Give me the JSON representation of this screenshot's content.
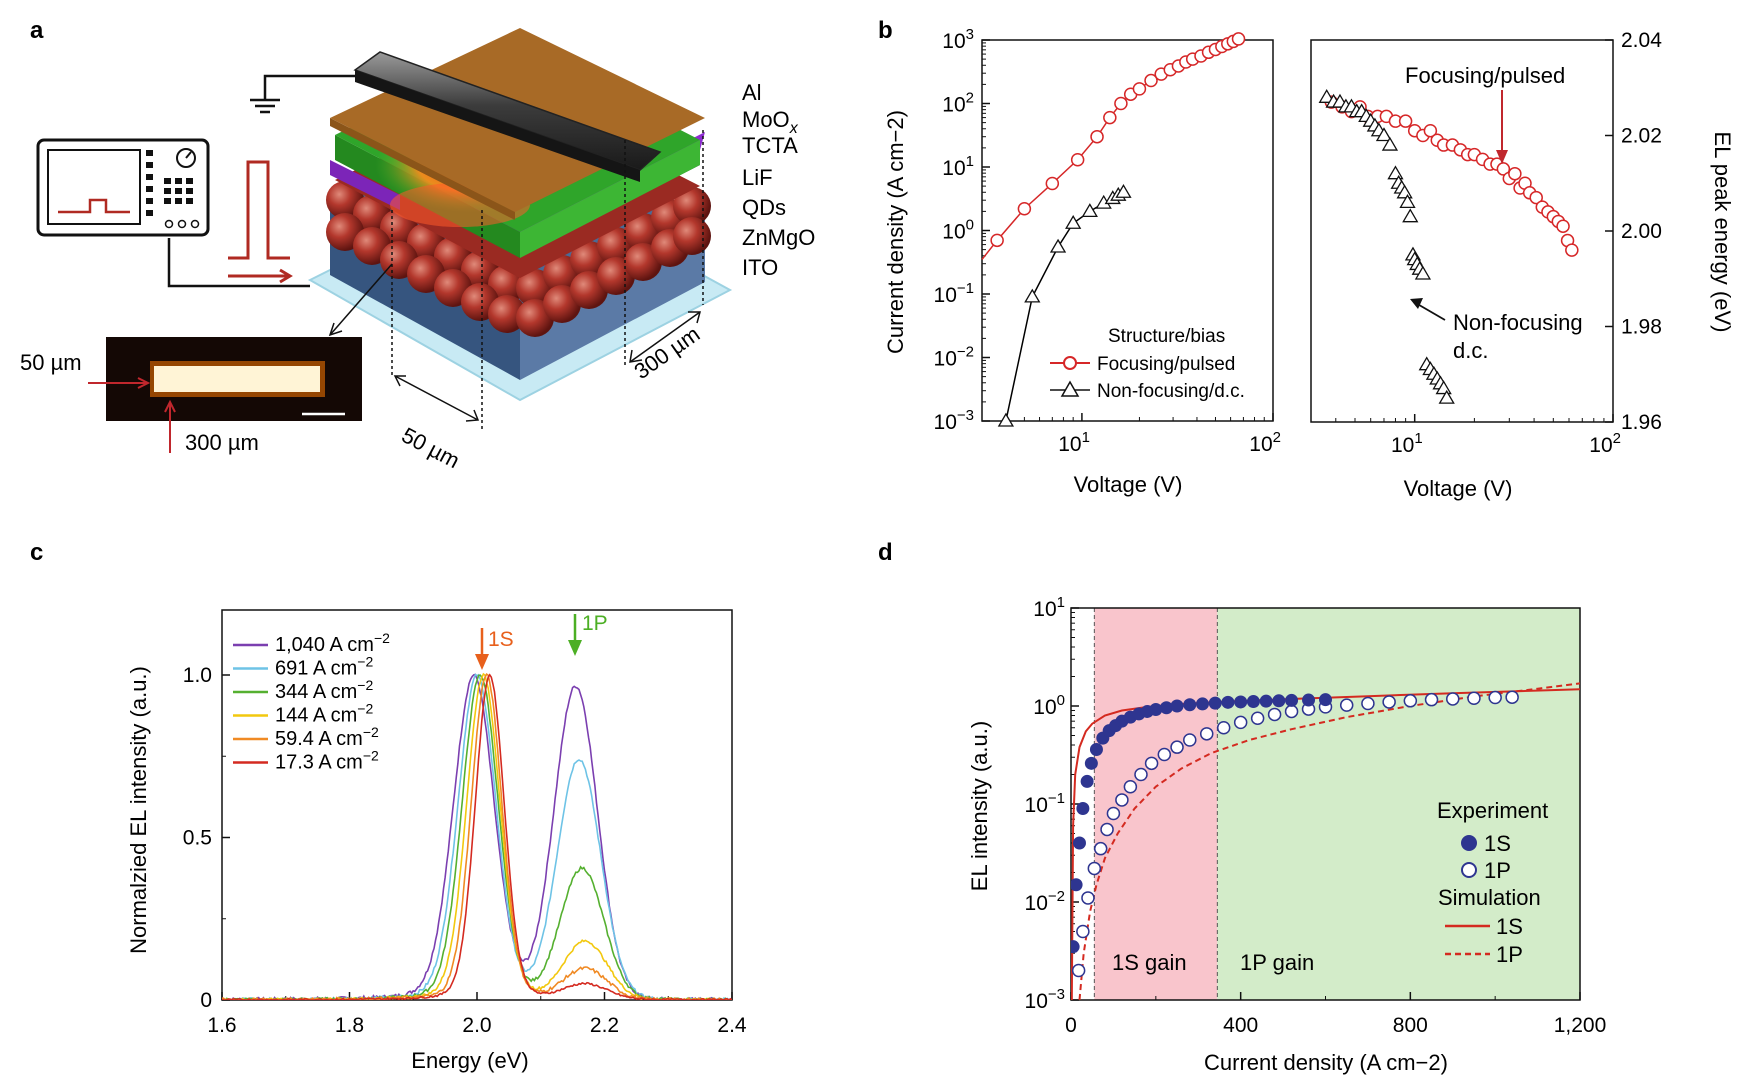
{
  "panels": {
    "a": {
      "label": "a",
      "layers": [
        "Al",
        "MoO",
        "TCTA",
        "LiF",
        "QDs",
        "ZnMgO",
        "ITO"
      ],
      "moo_subscript": "x",
      "dim_top": "50 µm",
      "dim_bottom": "300 µm",
      "dim_width": "50 µm",
      "dim_length": "300 µm"
    },
    "b": {
      "label": "b"
    },
    "c": {
      "label": "c"
    },
    "d": {
      "label": "d"
    }
  },
  "chart_data": [
    {
      "panel": "b-left",
      "type": "line",
      "xlabel": "Voltage (V)",
      "ylabel": "Current density (A cm−2)",
      "xscale": "log",
      "yscale": "log",
      "xlim": [
        3,
        100
      ],
      "ylim": [
        0.001,
        1000
      ],
      "legend_title": "Structure/bias",
      "legend_position": "bottom-right",
      "series": [
        {
          "name": "Focusing/pulsed",
          "color": "#d62728",
          "marker": "circle",
          "x": [
            3.6,
            5.0,
            7.0,
            9.5,
            12,
            14,
            16,
            18,
            20,
            23,
            26,
            29,
            32,
            35,
            38,
            42,
            46,
            50,
            54,
            58,
            62,
            66
          ],
          "y": [
            0.7,
            2.2,
            5.5,
            13,
            30,
            60,
            100,
            140,
            170,
            230,
            290,
            340,
            390,
            450,
            500,
            560,
            640,
            710,
            790,
            870,
            950,
            1040
          ]
        },
        {
          "name": "Non-focusing/d.c.",
          "color": "#000000",
          "marker": "triangle",
          "x": [
            4.0,
            5.5,
            7.5,
            9,
            11,
            13,
            14.5,
            15.5,
            16.5
          ],
          "y": [
            0.001,
            0.09,
            0.55,
            1.3,
            2.0,
            2.7,
            3.2,
            3.6,
            4.0
          ]
        }
      ]
    },
    {
      "panel": "b-right",
      "type": "scatter",
      "xlabel": "Voltage (V)",
      "ylabel": "EL peak energy (eV)",
      "xscale": "log",
      "xlim": [
        3,
        100
      ],
      "ylim": [
        1.96,
        2.04
      ],
      "yticks": [
        1.96,
        1.98,
        2.0,
        2.02,
        2.04
      ],
      "annotations": [
        "Focusing/pulsed",
        "Non-focusing",
        "d.c."
      ],
      "series": [
        {
          "name": "Focusing/pulsed",
          "color": "#d62728",
          "marker": "circle",
          "x": [
            3.8,
            4.3,
            4.8,
            5.3,
            5.8,
            6.5,
            7.2,
            8,
            9,
            10,
            11,
            12,
            13,
            14,
            15.5,
            17,
            18.5,
            20,
            22,
            24,
            26,
            28,
            30,
            32,
            34,
            36,
            38,
            41,
            44,
            47,
            50,
            53,
            56,
            59,
            62
          ],
          "y": [
            2.027,
            2.026,
            2.025,
            2.026,
            2.024,
            2.024,
            2.024,
            2.023,
            2.023,
            2.021,
            2.02,
            2.021,
            2.019,
            2.018,
            2.018,
            2.017,
            2.016,
            2.016,
            2.015,
            2.014,
            2.014,
            2.013,
            2.011,
            2.012,
            2.009,
            2.01,
            2.008,
            2.007,
            2.005,
            2.004,
            2.003,
            2.002,
            2.001,
            1.998,
            1.996
          ]
        },
        {
          "name": "Non-focusing/d.c.",
          "color": "#000000",
          "marker": "triangle",
          "x": [
            3.6,
            3.9,
            4.2,
            4.5,
            4.8,
            5.1,
            5.4,
            5.7,
            6.0,
            6.3,
            6.6,
            7.0,
            7.5,
            8.0,
            8.3,
            8.6,
            8.9,
            9.2,
            9.5,
            9.8,
            10.0,
            10.3,
            10.6,
            11.0,
            11.5,
            12.0,
            12.5,
            13.0,
            13.5,
            14.0,
            14.5
          ],
          "y": [
            2.028,
            2.027,
            2.027,
            2.026,
            2.026,
            2.025,
            2.025,
            2.024,
            2.023,
            2.022,
            2.021,
            2.02,
            2.018,
            2.012,
            2.01,
            2.009,
            2.008,
            2.006,
            2.003,
            1.995,
            1.994,
            1.993,
            1.992,
            1.991,
            1.972,
            1.971,
            1.97,
            1.969,
            1.968,
            1.967,
            1.965
          ]
        }
      ]
    },
    {
      "panel": "c",
      "type": "line",
      "xlabel": "Energy (eV)",
      "ylabel": "Normalzied EL intensity (a.u.)",
      "xlim": [
        1.6,
        2.4
      ],
      "ylim": [
        0,
        1.2
      ],
      "xticks": [
        "1.6",
        "1.8",
        "2.0",
        "2.2",
        "2.4"
      ],
      "yticks": [
        "0",
        "0.5",
        "1.0"
      ],
      "legend_position": "top-left",
      "annotations": [
        {
          "text": "1S",
          "x": 2.01,
          "color": "#e8601c"
        },
        {
          "text": "1P",
          "x": 2.16,
          "color": "#4caf24"
        }
      ],
      "series": [
        {
          "name": "1,040 A cm−2",
          "color": "#7b3fb0",
          "peak1": 1.995,
          "peak2": 2.155,
          "p2_amp": 1.03,
          "width1": 0.045
        },
        {
          "name": "691 A cm−2",
          "color": "#6ec3e6",
          "peak1": 2.0,
          "peak2": 2.16,
          "p2_amp": 0.79,
          "width1": 0.042
        },
        {
          "name": "344 A cm−2",
          "color": "#55b030",
          "peak1": 2.005,
          "peak2": 2.165,
          "p2_amp": 0.43,
          "width1": 0.04
        },
        {
          "name": "144 A cm−2",
          "color": "#f2c80f",
          "peak1": 2.01,
          "peak2": 2.17,
          "p2_amp": 0.19,
          "width1": 0.037
        },
        {
          "name": "59.4 A cm−2",
          "color": "#f08a24",
          "peak1": 2.015,
          "peak2": 2.17,
          "p2_amp": 0.1,
          "width1": 0.034
        },
        {
          "name": "17.3 A cm−2",
          "color": "#d42a20",
          "peak1": 2.02,
          "peak2": 2.17,
          "p2_amp": 0.05,
          "width1": 0.032
        }
      ]
    },
    {
      "panel": "d",
      "type": "scatter",
      "xlabel": "Current density (A cm−2)",
      "ylabel": "EL intensity (a.u.)",
      "yscale": "log",
      "xlim": [
        0,
        1200
      ],
      "ylim": [
        0.001,
        10
      ],
      "xticks": [
        "0",
        "400",
        "800",
        "1,200"
      ],
      "regions": [
        {
          "label": "1S gain",
          "from": 55,
          "to": 345,
          "color": "#f9c5cc"
        },
        {
          "label": "1P gain",
          "from": 345,
          "to": 1200,
          "color": "#d3ecc9"
        }
      ],
      "legend_title_experiment": "Experiment",
      "legend_title_simulation": "Simulation",
      "legend_position": "right",
      "series": [
        {
          "name": "1S",
          "group": "Experiment",
          "marker": "filled-circle",
          "color": "#2e3590",
          "x": [
            5,
            12,
            20,
            28,
            38,
            48,
            60,
            75,
            90,
            105,
            120,
            140,
            160,
            180,
            200,
            225,
            250,
            280,
            310,
            340,
            370,
            400,
            430,
            460,
            490,
            520,
            560,
            600
          ],
          "y": [
            0.0035,
            0.015,
            0.04,
            0.09,
            0.17,
            0.26,
            0.36,
            0.47,
            0.56,
            0.63,
            0.7,
            0.77,
            0.83,
            0.88,
            0.92,
            0.96,
            1.0,
            1.03,
            1.05,
            1.07,
            1.09,
            1.1,
            1.11,
            1.12,
            1.13,
            1.14,
            1.15,
            1.16
          ]
        },
        {
          "name": "1P",
          "group": "Experiment",
          "marker": "open-circle",
          "color": "#2e3590",
          "x": [
            18,
            28,
            40,
            55,
            70,
            85,
            100,
            120,
            140,
            165,
            190,
            220,
            250,
            280,
            320,
            360,
            400,
            440,
            480,
            520,
            560,
            600,
            650,
            700,
            750,
            800,
            850,
            900,
            950,
            1000,
            1040
          ],
          "y": [
            0.002,
            0.005,
            0.011,
            0.022,
            0.035,
            0.055,
            0.08,
            0.11,
            0.15,
            0.2,
            0.26,
            0.32,
            0.38,
            0.45,
            0.52,
            0.6,
            0.68,
            0.75,
            0.82,
            0.88,
            0.93,
            0.98,
            1.02,
            1.06,
            1.1,
            1.13,
            1.16,
            1.18,
            1.2,
            1.22,
            1.23
          ]
        },
        {
          "name": "1S",
          "group": "Simulation",
          "style": "solid",
          "color": "#d42a20",
          "x": [
            2,
            5,
            10,
            20,
            35,
            50,
            80,
            120,
            180,
            250,
            350,
            500,
            700,
            900,
            1200
          ],
          "y": [
            0.001,
            0.06,
            0.2,
            0.38,
            0.55,
            0.66,
            0.8,
            0.9,
            0.98,
            1.04,
            1.1,
            1.17,
            1.26,
            1.35,
            1.48
          ]
        },
        {
          "name": "1P",
          "group": "Simulation",
          "style": "dashed",
          "color": "#d42a20",
          "x": [
            20,
            30,
            45,
            60,
            80,
            110,
            150,
            200,
            260,
            330,
            420,
            520,
            650,
            800,
            950,
            1100,
            1200
          ],
          "y": [
            0.001,
            0.003,
            0.008,
            0.015,
            0.028,
            0.05,
            0.09,
            0.15,
            0.23,
            0.33,
            0.45,
            0.58,
            0.77,
            1.0,
            1.25,
            1.5,
            1.7
          ]
        }
      ]
    }
  ]
}
